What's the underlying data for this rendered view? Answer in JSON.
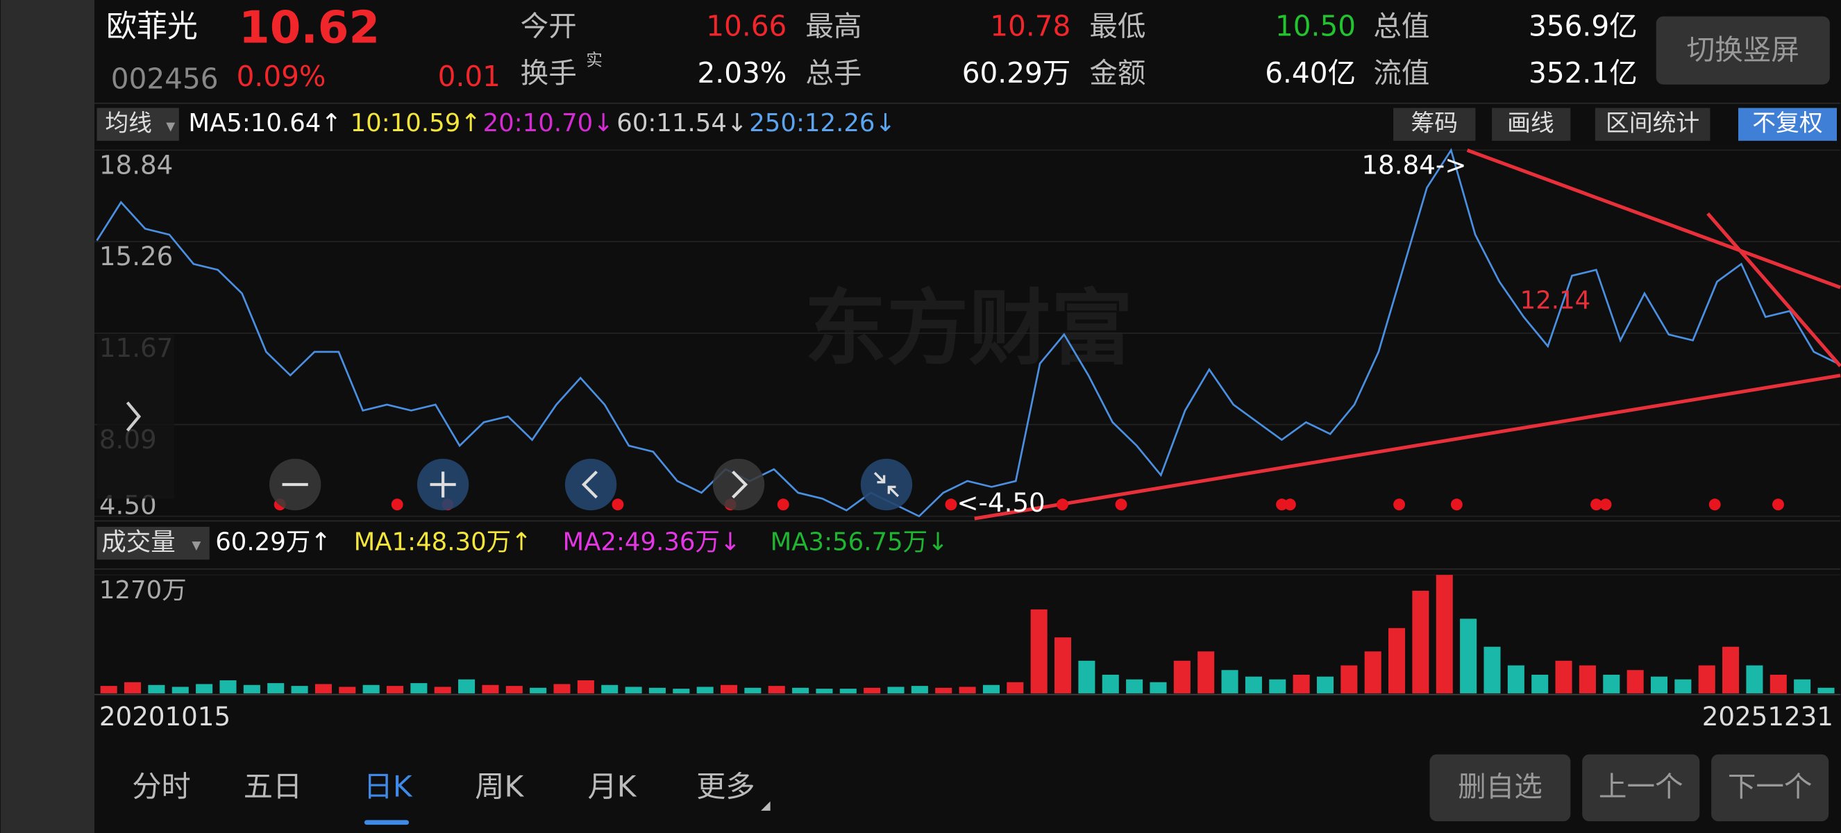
{
  "header": {
    "name": "欧菲光",
    "price": "10.62",
    "code": "002456",
    "change_pct": "0.09%",
    "change": "0.01",
    "quotes": [
      {
        "label": "今开",
        "value": "10.66"
      },
      {
        "label": "最高",
        "value": "10.78"
      },
      {
        "label": "最低",
        "value": "10.50"
      },
      {
        "label": "总值",
        "value": "356.9亿"
      },
      {
        "label": "换手",
        "sup": "实",
        "value": "2.03%"
      },
      {
        "label": "总手",
        "value": "60.29万"
      },
      {
        "label": "金额",
        "value": "6.40亿"
      },
      {
        "label": "流值",
        "value": "352.1亿"
      }
    ],
    "button": "切换竖屏"
  },
  "ma_bar": {
    "dropdown": "均线",
    "items": [
      "MA5:10.64↑",
      "10:10.59↑",
      "20:10.70↓",
      "60:11.54↓",
      "250:12.26↓"
    ],
    "buttons": [
      "筹码",
      "画线",
      "区间统计",
      "不复权"
    ]
  },
  "price_chart": {
    "watermark": "东方财富",
    "ylim": [
      4.5,
      18.84
    ],
    "yticks": [
      18.84,
      15.26,
      11.67,
      8.09,
      {
        "value": 4.5,
        "label": "4.50"
      }
    ],
    "high_label": "18.84->",
    "low_label": "<-4.50",
    "mark_label": "12.14",
    "values": [
      15.3,
      16.8,
      15.76,
      15.53,
      14.38,
      14.15,
      13.23,
      10.94,
      10.02,
      10.94,
      10.94,
      8.64,
      8.87,
      8.64,
      8.87,
      7.26,
      8.18,
      8.41,
      7.49,
      8.87,
      9.92,
      8.87,
      7.26,
      7.03,
      5.88,
      5.42,
      6.34,
      5.88,
      6.34,
      5.42,
      5.19,
      4.73,
      5.42,
      4.96,
      4.5,
      5.42,
      5.88,
      5.65,
      5.88,
      10.48,
      11.62,
      10.02,
      8.18,
      7.26,
      6.11,
      8.64,
      10.25,
      8.87,
      8.18,
      7.49,
      8.18,
      7.72,
      8.87,
      10.94,
      14.15,
      17.37,
      18.84,
      15.53,
      13.69,
      12.31,
      11.16,
      13.92,
      14.15,
      11.39,
      13.23,
      11.62,
      11.39,
      13.69,
      14.38,
      12.31,
      12.54,
      10.94,
      10.48
    ]
  },
  "volume_chart": {
    "dropdown": "成交量",
    "items": [
      "60.29万↑",
      "MA1:48.30万↑",
      "MA2:49.36万↓",
      "MA3:56.75万↓"
    ],
    "ylim": [
      0,
      1270
    ],
    "yticks": [
      {
        "value": 1270,
        "label": "1270万"
      }
    ],
    "values": [
      80,
      120,
      90,
      70,
      100,
      140,
      90,
      110,
      80,
      100,
      70,
      90,
      80,
      110,
      70,
      150,
      90,
      80,
      60,
      100,
      140,
      90,
      70,
      60,
      50,
      70,
      90,
      60,
      80,
      60,
      50,
      50,
      60,
      70,
      80,
      60,
      70,
      90,
      120,
      900,
      600,
      350,
      200,
      150,
      120,
      350,
      450,
      250,
      180,
      150,
      200,
      180,
      300,
      450,
      700,
      1100,
      1270,
      800,
      500,
      300,
      200,
      350,
      300,
      200,
      250,
      180,
      150,
      300,
      500,
      300,
      200,
      150,
      60.29
    ]
  },
  "dates": {
    "start": "20201015",
    "end": "20251231"
  },
  "tabs": [
    "分时",
    "五日",
    "日K",
    "周K",
    "月K",
    "更多"
  ],
  "actions": [
    "删自选",
    "上一个",
    "下一个"
  ]
}
